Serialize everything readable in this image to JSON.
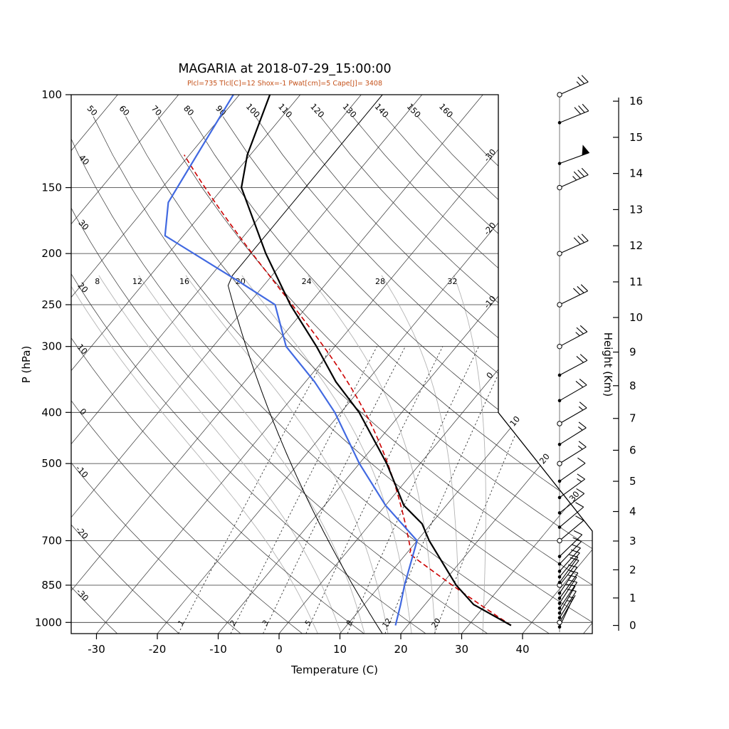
{
  "chart_data": {
    "type": "skewt_logp",
    "title": "MAGARIA at 2018-07-29_15:00:00",
    "subtitle": "Plcl=735 Tlcl[C]=12 Shox=-1 Pwat[cm]=5 Cape[J]= 3408",
    "parameters": {
      "Plcl_hPa": 735,
      "Tlcl_C": 12,
      "Showalter_index": -1,
      "Pwat_cm": 5,
      "Cape_J": 3408
    },
    "xlabel": "Temperature (C)",
    "ylabel": "P (hPa)",
    "y2label": "Height (Km)",
    "pressure_ticks": [
      100,
      150,
      200,
      250,
      300,
      400,
      500,
      700,
      850,
      1000
    ],
    "pressure_range": [
      100,
      1050
    ],
    "temperature_ticks": [
      -30,
      -20,
      -10,
      0,
      10,
      20,
      30,
      40
    ],
    "height_ticks_km": [
      0,
      1,
      2,
      3,
      4,
      5,
      6,
      7,
      8,
      9,
      10,
      11,
      12,
      13,
      14,
      15,
      16
    ],
    "isotherms": {
      "values": [
        -110,
        -100,
        -90,
        -80,
        -70,
        -60,
        -50,
        -40,
        -30,
        -20,
        -10,
        0,
        10,
        20,
        30,
        40,
        50
      ],
      "right_edge_labels": [
        -30,
        -20,
        -10,
        0
      ],
      "diagonal_labels": [
        10,
        20,
        30
      ]
    },
    "dry_adiabats": {
      "values": [
        -30,
        -20,
        -10,
        0,
        10,
        20,
        30,
        40,
        50,
        60,
        70,
        80,
        90,
        100,
        110,
        120,
        130,
        140,
        150,
        160
      ],
      "top_labels": [
        50,
        60,
        70,
        80,
        90,
        100,
        110,
        120,
        130,
        140,
        150,
        160
      ],
      "left_labels": [
        40,
        30,
        20,
        10,
        0,
        -10,
        -20,
        -30
      ]
    },
    "moist_adiabats": {
      "values": [
        4,
        8,
        12,
        16,
        20,
        24,
        28,
        32
      ],
      "labels": [
        8,
        12,
        16,
        20,
        24,
        28,
        32
      ],
      "label_pressure": 222
    },
    "mixing_ratio": {
      "values_g_kg": [
        1,
        2,
        3,
        5,
        8,
        12,
        20
      ]
    },
    "sounding": {
      "temperature": {
        "pressure": [
          1013,
          925,
          850,
          700,
          650,
          600,
          500,
          400,
          350,
          300,
          250,
          200,
          150,
          130,
          100
        ],
        "values": [
          37,
          28,
          22.5,
          12,
          8.5,
          3,
          -5.5,
          -17,
          -25,
          -33,
          -43,
          -54,
          -67,
          -70.5,
          -75
        ]
      },
      "dewpoint": {
        "pressure": [
          1013,
          925,
          850,
          700,
          600,
          500,
          400,
          350,
          300,
          250,
          225,
          185,
          160,
          100
        ],
        "values": [
          18,
          16,
          14,
          10,
          0,
          -10,
          -21,
          -28.5,
          -38,
          -45.5,
          -55,
          -73,
          -77,
          -81
        ]
      }
    },
    "parcel": {
      "surface_pressure": 1013,
      "surface_temperature_c": 37,
      "lcl_pressure": 735,
      "lcl_temperature_c": 12,
      "top_pressure": 132
    },
    "reference_profile": {
      "type": "standard_atmosphere",
      "surface_temperature_c": 15,
      "lapse_c_per_km": 6.5,
      "tropopause_km": 11,
      "tropopause_temperature_c": -56.5
    },
    "wind_barbs": {
      "levels": [
        {
          "p": 1020,
          "spd": 5,
          "ang": 25
        },
        {
          "p": 1000,
          "spd": 5,
          "ang": 30,
          "open": true
        },
        {
          "p": 980,
          "spd": 10,
          "ang": 32
        },
        {
          "p": 960,
          "spd": 10,
          "ang": 30
        },
        {
          "p": 940,
          "spd": 10,
          "ang": 34
        },
        {
          "p": 920,
          "spd": 10,
          "ang": 33
        },
        {
          "p": 900,
          "spd": 10,
          "ang": 36
        },
        {
          "p": 880,
          "spd": 10,
          "ang": 34
        },
        {
          "p": 850,
          "spd": 10,
          "ang": 38,
          "open": true
        },
        {
          "p": 840,
          "spd": 10,
          "ang": 36
        },
        {
          "p": 820,
          "spd": 10,
          "ang": 40
        },
        {
          "p": 800,
          "spd": 10,
          "ang": 42
        },
        {
          "p": 775,
          "spd": 10,
          "ang": 44
        },
        {
          "p": 750,
          "spd": 10,
          "ang": 46
        },
        {
          "p": 700,
          "spd": 10,
          "ang": 50,
          "open": true
        },
        {
          "p": 660,
          "spd": 10,
          "ang": 50
        },
        {
          "p": 620,
          "spd": 10,
          "ang": 52
        },
        {
          "p": 580,
          "spd": 15,
          "ang": 54
        },
        {
          "p": 540,
          "spd": 10,
          "ang": 55
        },
        {
          "p": 500,
          "spd": 15,
          "ang": 58,
          "open": true
        },
        {
          "p": 460,
          "spd": 15,
          "ang": 58
        },
        {
          "p": 420,
          "spd": 15,
          "ang": 60,
          "open": true
        },
        {
          "p": 380,
          "spd": 20,
          "ang": 60
        },
        {
          "p": 340,
          "spd": 20,
          "ang": 62
        },
        {
          "p": 300,
          "spd": 25,
          "ang": 62,
          "open": true
        },
        {
          "p": 250,
          "spd": 30,
          "ang": 64,
          "open": true
        },
        {
          "p": 200,
          "spd": 30,
          "ang": 66,
          "open": true
        },
        {
          "p": 150,
          "spd": 35,
          "ang": 66,
          "open": true
        },
        {
          "p": 135,
          "spd": 50,
          "ang": 70
        },
        {
          "p": 113,
          "spd": 30,
          "ang": 68
        },
        {
          "p": 100,
          "spd": 25,
          "ang": 66,
          "open": true
        }
      ]
    },
    "colors": {
      "subtitle": "#c4511a",
      "temperature": "#000000",
      "dewpoint": "#4169e1",
      "parcel": "#cc0000",
      "reference": "#000000",
      "moist_adiabat": "#b3b3b3",
      "grid": "#333333"
    }
  }
}
